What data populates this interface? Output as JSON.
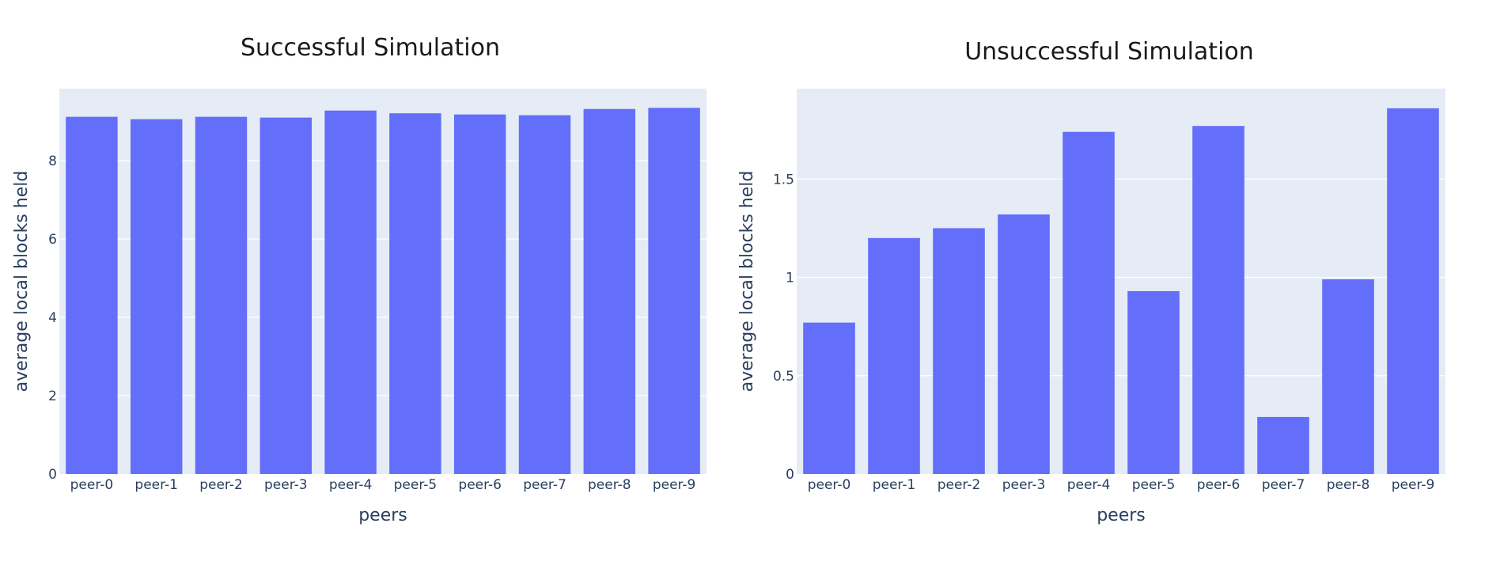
{
  "colors": {
    "plot_bg": "#e5ecf6",
    "grid": "#ffffff",
    "bar": "#636efa",
    "axis_text": "#2a3f5f",
    "title_text": "#1a1a1a"
  },
  "chart_data": [
    {
      "type": "bar",
      "title": "Successful Simulation",
      "xlabel": "peers",
      "ylabel": "average local blocks held",
      "categories": [
        "peer-0",
        "peer-1",
        "peer-2",
        "peer-3",
        "peer-4",
        "peer-5",
        "peer-6",
        "peer-7",
        "peer-8",
        "peer-9"
      ],
      "values": [
        9.12,
        9.06,
        9.12,
        9.1,
        9.28,
        9.21,
        9.18,
        9.16,
        9.32,
        9.35
      ],
      "ylim": [
        0,
        9.84
      ],
      "yticks": [
        0,
        2,
        4,
        6,
        8
      ],
      "ytick_labels": [
        "0",
        "2",
        "4",
        "6",
        "8"
      ],
      "grid": true
    },
    {
      "type": "bar",
      "title": "Unsuccessful Simulation",
      "xlabel": "peers",
      "ylabel": "average local blocks held",
      "categories": [
        "peer-0",
        "peer-1",
        "peer-2",
        "peer-3",
        "peer-4",
        "peer-5",
        "peer-6",
        "peer-7",
        "peer-8",
        "peer-9"
      ],
      "values": [
        0.77,
        1.2,
        1.25,
        1.32,
        1.74,
        0.93,
        1.77,
        0.29,
        0.99,
        1.86
      ],
      "ylim": [
        0,
        1.96
      ],
      "yticks": [
        0,
        0.5,
        1,
        1.5
      ],
      "ytick_labels": [
        "0",
        "0.5",
        "1",
        "1.5"
      ],
      "grid": true
    }
  ]
}
